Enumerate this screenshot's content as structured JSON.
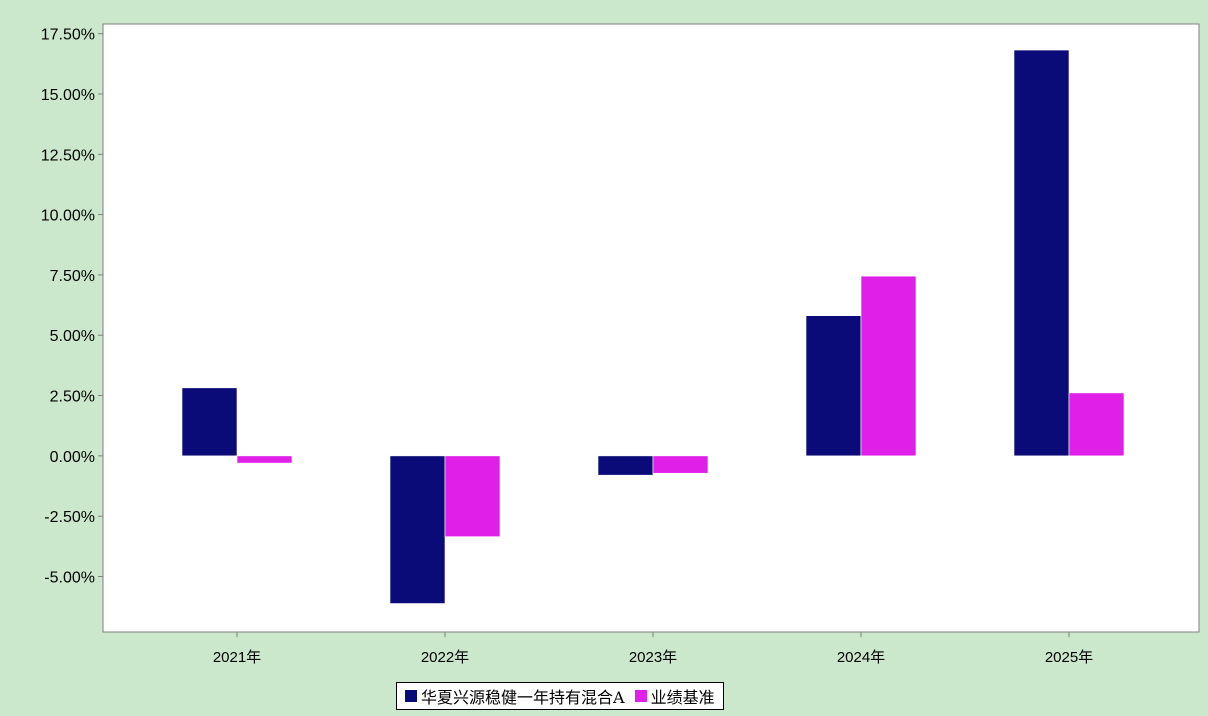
{
  "chart_data": {
    "type": "bar",
    "title": "",
    "xlabel": "",
    "ylabel": "",
    "categories": [
      "2021年",
      "2022年",
      "2023年",
      "2024年",
      "2025年"
    ],
    "series": [
      {
        "name": "华夏兴源稳健一年持有混合A",
        "color": "#0a0a78",
        "values": [
          2.82,
          -6.12,
          -0.8,
          5.81,
          16.82
        ]
      },
      {
        "name": "业绩基准",
        "color": "#e020e8",
        "values": [
          -0.3,
          -3.35,
          -0.72,
          7.45,
          2.61
        ]
      }
    ],
    "ylim": [
      -7.3,
      17.9
    ],
    "yticks": [
      17.5,
      15.0,
      12.5,
      10.0,
      7.5,
      5.0,
      2.5,
      0.0,
      -2.5,
      -5.0
    ],
    "ytick_labels": [
      "17.50%",
      "15.00%",
      "12.50%",
      "10.00%",
      "7.50%",
      "5.00%",
      "2.50%",
      "0.00%",
      "-2.50%",
      "-5.00%"
    ],
    "grid": false,
    "legend_position": "bottom-center",
    "background_color": "#cce8cc",
    "plot_background_color": "#ffffff"
  }
}
